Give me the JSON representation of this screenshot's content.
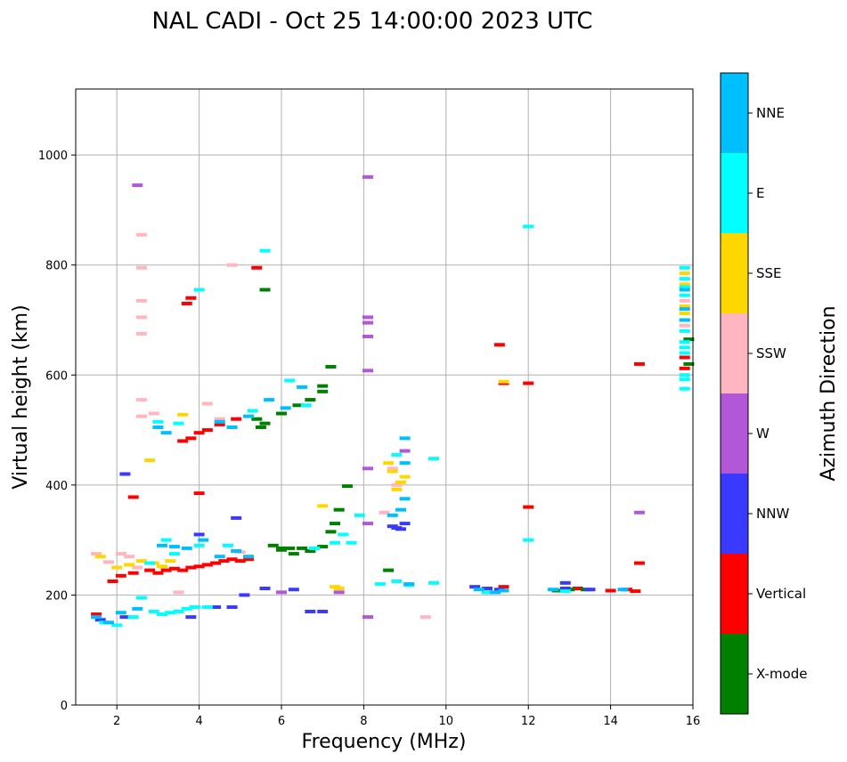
{
  "chart_data": {
    "type": "scatter",
    "title": "NAL CADI - Oct 25 14:00:00 2023 UTC",
    "xlabel": "Frequency (MHz)",
    "ylabel": "Virtual height (km)",
    "xlim": [
      1.0,
      16.0
    ],
    "ylim": [
      0,
      1120
    ],
    "xticks": [
      2,
      4,
      6,
      8,
      10,
      12,
      14,
      16
    ],
    "yticks": [
      0,
      200,
      400,
      600,
      800,
      1000
    ],
    "grid": true,
    "colorbar": {
      "label": "Azimuth Direction",
      "categories": [
        {
          "name": "X-mode",
          "color": "#008000"
        },
        {
          "name": "Vertical",
          "color": "#ff0000"
        },
        {
          "name": "NNW",
          "color": "#3a3aff"
        },
        {
          "name": "W",
          "color": "#b157d8"
        },
        {
          "name": "SSW",
          "color": "#ffb6c1"
        },
        {
          "name": "SSE",
          "color": "#ffd700"
        },
        {
          "name": "E",
          "color": "#00ffff"
        },
        {
          "name": "NNE",
          "color": "#00bfff"
        }
      ]
    },
    "series": [
      {
        "name": "Vertical",
        "points": [
          [
            1.5,
            165
          ],
          [
            1.9,
            225
          ],
          [
            2.1,
            235
          ],
          [
            2.4,
            240
          ],
          [
            2.8,
            245
          ],
          [
            3.0,
            240
          ],
          [
            3.2,
            245
          ],
          [
            3.4,
            248
          ],
          [
            3.6,
            245
          ],
          [
            3.8,
            250
          ],
          [
            4.0,
            252
          ],
          [
            4.2,
            255
          ],
          [
            4.4,
            258
          ],
          [
            4.6,
            262
          ],
          [
            4.8,
            265
          ],
          [
            5.0,
            262
          ],
          [
            5.2,
            265
          ],
          [
            3.6,
            480
          ],
          [
            3.8,
            485
          ],
          [
            4.0,
            495
          ],
          [
            4.2,
            500
          ],
          [
            4.5,
            510
          ],
          [
            4.9,
            520
          ],
          [
            5.4,
            795
          ],
          [
            3.7,
            730
          ],
          [
            3.8,
            740
          ],
          [
            4.0,
            385
          ],
          [
            2.4,
            378
          ],
          [
            11.3,
            655
          ],
          [
            11.4,
            585
          ],
          [
            12.0,
            585
          ],
          [
            12.0,
            360
          ],
          [
            14.7,
            620
          ],
          [
            14.7,
            258
          ],
          [
            11.4,
            215
          ],
          [
            13.2,
            212
          ],
          [
            14.0,
            208
          ],
          [
            14.4,
            210
          ],
          [
            14.6,
            207
          ],
          [
            15.8,
            632
          ],
          [
            15.8,
            612
          ]
        ]
      },
      {
        "name": "X-mode",
        "points": [
          [
            5.4,
            520
          ],
          [
            5.5,
            505
          ],
          [
            5.6,
            512
          ],
          [
            6.0,
            530
          ],
          [
            6.4,
            545
          ],
          [
            6.7,
            555
          ],
          [
            7.0,
            580
          ],
          [
            7.2,
            615
          ],
          [
            7.0,
            570
          ],
          [
            5.6,
            755
          ],
          [
            5.8,
            290
          ],
          [
            6.0,
            282
          ],
          [
            6.2,
            285
          ],
          [
            6.3,
            275
          ],
          [
            6.5,
            285
          ],
          [
            6.7,
            280
          ],
          [
            7.0,
            288
          ],
          [
            7.2,
            315
          ],
          [
            7.3,
            330
          ],
          [
            7.4,
            355
          ],
          [
            7.6,
            398
          ],
          [
            6.0,
            285
          ],
          [
            8.6,
            245
          ],
          [
            13.0,
            210
          ],
          [
            12.7,
            208
          ],
          [
            13.4,
            210
          ],
          [
            15.9,
            620
          ],
          [
            15.9,
            665
          ]
        ]
      },
      {
        "name": "NNW",
        "points": [
          [
            1.6,
            155
          ],
          [
            2.2,
            160
          ],
          [
            3.8,
            160
          ],
          [
            4.4,
            178
          ],
          [
            4.8,
            178
          ],
          [
            5.1,
            200
          ],
          [
            5.6,
            212
          ],
          [
            6.3,
            210
          ],
          [
            6.7,
            170
          ],
          [
            7.0,
            170
          ],
          [
            8.7,
            325
          ],
          [
            8.9,
            320
          ],
          [
            9.0,
            330
          ],
          [
            8.8,
            322
          ],
          [
            10.7,
            215
          ],
          [
            11.0,
            212
          ],
          [
            11.3,
            210
          ],
          [
            12.9,
            222
          ],
          [
            12.9,
            212
          ],
          [
            13.5,
            210
          ],
          [
            2.2,
            420
          ],
          [
            4.0,
            310
          ],
          [
            4.9,
            340
          ]
        ]
      },
      {
        "name": "W",
        "points": [
          [
            8.1,
            960
          ],
          [
            8.1,
            705
          ],
          [
            8.1,
            695
          ],
          [
            8.1,
            670
          ],
          [
            8.1,
            608
          ],
          [
            8.1,
            430
          ],
          [
            8.1,
            330
          ],
          [
            8.1,
            160
          ],
          [
            9.0,
            462
          ],
          [
            14.7,
            350
          ],
          [
            6.0,
            205
          ],
          [
            7.4,
            205
          ],
          [
            2.5,
            945
          ]
        ]
      },
      {
        "name": "SSW",
        "points": [
          [
            1.5,
            275
          ],
          [
            1.8,
            260
          ],
          [
            2.1,
            275
          ],
          [
            2.3,
            270
          ],
          [
            2.5,
            250
          ],
          [
            2.6,
            855
          ],
          [
            2.6,
            795
          ],
          [
            2.6,
            735
          ],
          [
            2.6,
            705
          ],
          [
            2.6,
            675
          ],
          [
            2.6,
            555
          ],
          [
            2.6,
            525
          ],
          [
            2.9,
            530
          ],
          [
            3.5,
            205
          ],
          [
            4.2,
            548
          ],
          [
            4.5,
            520
          ],
          [
            4.8,
            800
          ],
          [
            5.0,
            278
          ],
          [
            8.5,
            350
          ],
          [
            8.8,
            400
          ],
          [
            8.7,
            430
          ],
          [
            9.5,
            160
          ],
          [
            15.8,
            690
          ],
          [
            15.8,
            735
          ]
        ]
      },
      {
        "name": "SSE",
        "points": [
          [
            1.6,
            270
          ],
          [
            2.0,
            250
          ],
          [
            2.3,
            255
          ],
          [
            2.6,
            262
          ],
          [
            2.9,
            258
          ],
          [
            3.1,
            252
          ],
          [
            3.3,
            262
          ],
          [
            3.6,
            528
          ],
          [
            2.8,
            445
          ],
          [
            7.0,
            362
          ],
          [
            7.3,
            215
          ],
          [
            7.4,
            212
          ],
          [
            8.6,
            440
          ],
          [
            8.7,
            425
          ],
          [
            8.9,
            405
          ],
          [
            8.8,
            392
          ],
          [
            9.0,
            415
          ],
          [
            11.4,
            588
          ],
          [
            15.8,
            712
          ],
          [
            15.8,
            725
          ],
          [
            15.8,
            785
          ],
          [
            15.8,
            765
          ]
        ]
      },
      {
        "name": "E",
        "points": [
          [
            1.7,
            150
          ],
          [
            2.0,
            145
          ],
          [
            2.4,
            160
          ],
          [
            2.6,
            195
          ],
          [
            2.9,
            170
          ],
          [
            3.1,
            165
          ],
          [
            3.3,
            168
          ],
          [
            3.5,
            170
          ],
          [
            3.7,
            175
          ],
          [
            3.9,
            178
          ],
          [
            4.2,
            178
          ],
          [
            4.0,
            290
          ],
          [
            3.4,
            275
          ],
          [
            3.2,
            300
          ],
          [
            2.8,
            258
          ],
          [
            3.0,
            515
          ],
          [
            3.5,
            512
          ],
          [
            4.0,
            755
          ],
          [
            4.7,
            290
          ],
          [
            5.3,
            535
          ],
          [
            5.6,
            826
          ],
          [
            6.2,
            590
          ],
          [
            6.6,
            545
          ],
          [
            6.8,
            285
          ],
          [
            7.3,
            295
          ],
          [
            7.5,
            310
          ],
          [
            7.7,
            295
          ],
          [
            7.9,
            345
          ],
          [
            8.4,
            220
          ],
          [
            8.8,
            225
          ],
          [
            9.1,
            218
          ],
          [
            9.7,
            448
          ],
          [
            9.7,
            222
          ],
          [
            8.8,
            455
          ],
          [
            11.0,
            205
          ],
          [
            12.0,
            870
          ],
          [
            12.0,
            300
          ],
          [
            12.9,
            207
          ],
          [
            15.8,
            575
          ],
          [
            15.8,
            592
          ],
          [
            15.8,
            600
          ],
          [
            15.8,
            640
          ],
          [
            15.8,
            650
          ],
          [
            15.8,
            660
          ],
          [
            15.8,
            680
          ],
          [
            15.8,
            700
          ],
          [
            15.8,
            745
          ],
          [
            15.8,
            760
          ],
          [
            15.8,
            775
          ],
          [
            15.8,
            795
          ]
        ]
      },
      {
        "name": "NNE",
        "points": [
          [
            1.5,
            160
          ],
          [
            1.8,
            150
          ],
          [
            2.1,
            168
          ],
          [
            2.5,
            175
          ],
          [
            3.1,
            290
          ],
          [
            3.4,
            288
          ],
          [
            3.7,
            285
          ],
          [
            4.1,
            300
          ],
          [
            4.5,
            270
          ],
          [
            4.9,
            280
          ],
          [
            5.2,
            270
          ],
          [
            3.0,
            505
          ],
          [
            3.2,
            495
          ],
          [
            4.5,
            515
          ],
          [
            4.8,
            505
          ],
          [
            5.2,
            525
          ],
          [
            5.7,
            555
          ],
          [
            6.1,
            540
          ],
          [
            6.5,
            578
          ],
          [
            8.7,
            345
          ],
          [
            8.9,
            355
          ],
          [
            9.0,
            485
          ],
          [
            9.0,
            375
          ],
          [
            9.0,
            440
          ],
          [
            9.1,
            220
          ],
          [
            10.8,
            210
          ],
          [
            11.2,
            205
          ],
          [
            11.4,
            208
          ],
          [
            12.6,
            210
          ],
          [
            14.3,
            210
          ],
          [
            15.8,
            700
          ],
          [
            15.8,
            720
          ],
          [
            15.8,
            755
          ]
        ]
      }
    ]
  }
}
